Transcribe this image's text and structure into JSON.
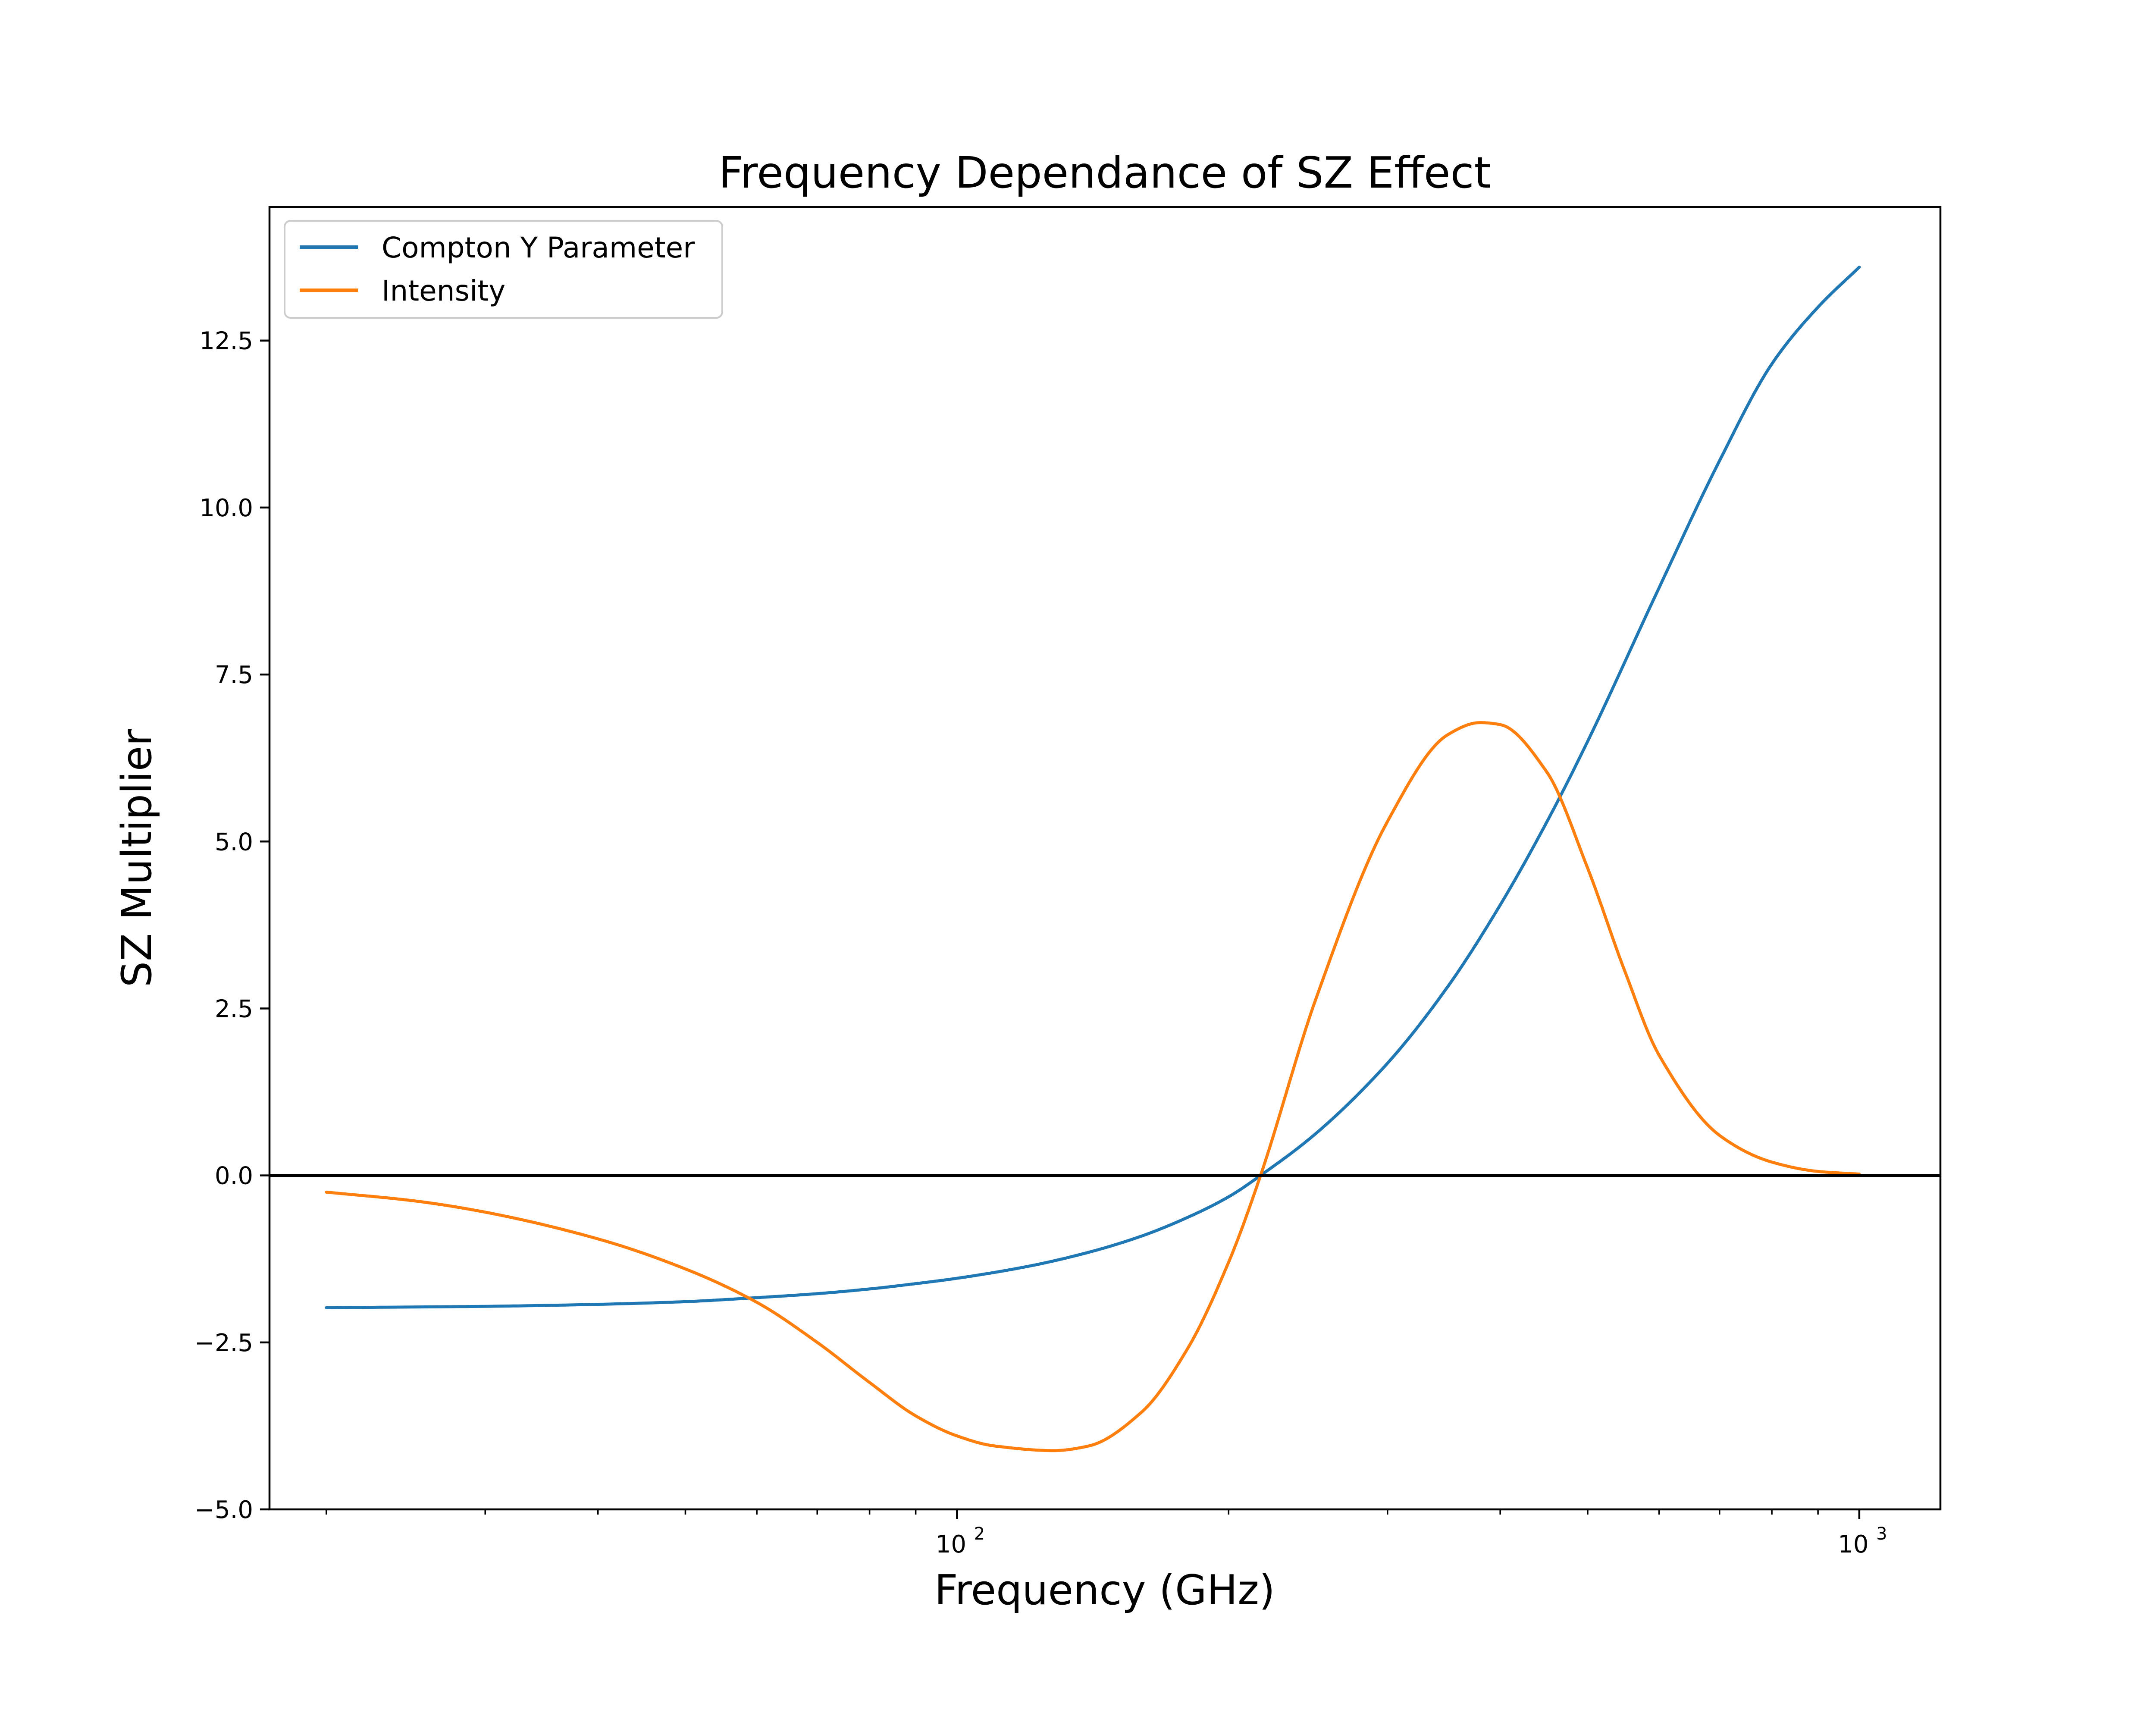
{
  "chart_data": {
    "type": "line",
    "title": "Frequency Dependance of SZ Effect",
    "xlabel": "Frequency (GHz)",
    "ylabel": "SZ Multiplier",
    "xscale": "log",
    "xlim": [
      17.3,
      1230
    ],
    "ylim": [
      -5.0,
      14.5
    ],
    "yticks": [
      -5.0,
      -2.5,
      0.0,
      2.5,
      5.0,
      7.5,
      10.0,
      12.5
    ],
    "ytick_labels": [
      "−5.0",
      "−2.5",
      "0.0",
      "2.5",
      "5.0",
      "7.5",
      "10.0",
      "12.5"
    ],
    "xticks_major": [
      100,
      1000
    ],
    "xtick_labels": [
      {
        "base": "10",
        "exp": "2"
      },
      {
        "base": "10",
        "exp": "3"
      }
    ],
    "grid": false,
    "legend_position": "top-left",
    "zero_line": {
      "y": 0.0,
      "color": "#000000"
    },
    "series": [
      {
        "name": "Compton Y Parameter",
        "color": "#1f77b4",
        "x": [
          20,
          30,
          40,
          50,
          60,
          70,
          80,
          90,
          100,
          120,
          140,
          160,
          180,
          200,
          217,
          250,
          300,
          350,
          400,
          450,
          500,
          600,
          700,
          800,
          900,
          1000
        ],
        "y": [
          -1.98,
          -1.96,
          -1.93,
          -1.89,
          -1.83,
          -1.77,
          -1.7,
          -1.62,
          -1.54,
          -1.36,
          -1.15,
          -0.91,
          -0.63,
          -0.32,
          0.0,
          0.63,
          1.68,
          2.83,
          4.05,
          5.28,
          6.5,
          8.8,
          10.7,
          12.15,
          13.0,
          13.6
        ]
      },
      {
        "name": "Intensity",
        "color": "#ff7f0e",
        "x": [
          20,
          25,
          30,
          40,
          50,
          60,
          70,
          80,
          90,
          100,
          110,
          128,
          140,
          160,
          180,
          200,
          217,
          250,
          300,
          350,
          380,
          400,
          450,
          500,
          550,
          600,
          700,
          800,
          900,
          1000
        ],
        "y": [
          -0.25,
          -0.38,
          -0.55,
          -0.95,
          -1.4,
          -1.9,
          -2.5,
          -3.1,
          -3.6,
          -3.9,
          -4.05,
          -4.12,
          -4.05,
          -3.55,
          -2.6,
          -1.3,
          0.0,
          2.65,
          5.3,
          6.6,
          6.78,
          6.75,
          6.05,
          4.6,
          3.05,
          1.8,
          0.6,
          0.2,
          0.06,
          0.02
        ]
      }
    ]
  }
}
